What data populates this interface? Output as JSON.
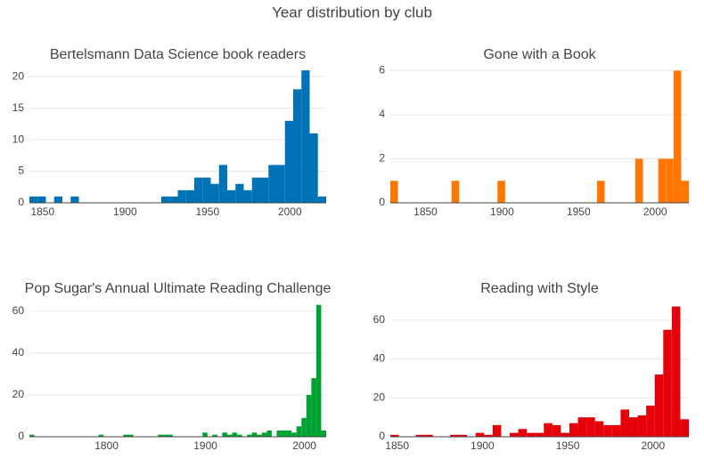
{
  "title": "Year distribution by club",
  "chart_data": [
    {
      "type": "histogram",
      "title": "Bertelsmann Data Science book readers",
      "color": "#0072b8",
      "bins": [
        1842,
        1847,
        1852,
        1857,
        1862,
        1867,
        1872,
        1877,
        1882,
        1887,
        1892,
        1897,
        1902,
        1907,
        1912,
        1917,
        1922,
        1927,
        1932,
        1937,
        1942,
        1947,
        1952,
        1957,
        1962,
        1967,
        1972,
        1977,
        1982,
        1987,
        1992,
        1997,
        2002,
        2007,
        2012,
        2017,
        2022
      ],
      "values": [
        1,
        1,
        0,
        1,
        0,
        1,
        0,
        0,
        0,
        0,
        0,
        0,
        0,
        0,
        0,
        0,
        1,
        1,
        2,
        2,
        4,
        4,
        3,
        6,
        2,
        3,
        2,
        4,
        4,
        6,
        6,
        13,
        18,
        21,
        11,
        1
      ],
      "xlim": [
        1842,
        2022
      ],
      "xticks": [
        1850,
        1900,
        1950,
        2000
      ],
      "ylim": [
        0,
        22
      ],
      "yticks": [
        0,
        5,
        10,
        15,
        20
      ],
      "grid": true
    },
    {
      "type": "histogram",
      "title": "Gone with a Book",
      "color": "#ff7700",
      "bins": [
        1827,
        1832,
        1837,
        1842,
        1847,
        1852,
        1857,
        1862,
        1867,
        1872,
        1877,
        1882,
        1887,
        1892,
        1897,
        1902,
        1907,
        1912,
        1917,
        1922,
        1927,
        1932,
        1937,
        1942,
        1947,
        1952,
        1957,
        1962,
        1967,
        1972,
        1977,
        1982,
        1987,
        1992,
        1997,
        2002,
        2007,
        2012,
        2017,
        2022
      ],
      "values": [
        1,
        0,
        0,
        0,
        0,
        0,
        0,
        0,
        1,
        0,
        0,
        0,
        0,
        0,
        1,
        0,
        0,
        0,
        0,
        0,
        0,
        0,
        0,
        0,
        0,
        0,
        0,
        1,
        0,
        0,
        0,
        0,
        2,
        0,
        0,
        2,
        2,
        6,
        1
      ],
      "xlim": [
        1827,
        2022
      ],
      "xticks": [
        1850,
        1900,
        1950,
        2000
      ],
      "ylim": [
        0,
        6.3
      ],
      "yticks": [
        0,
        2,
        4,
        6
      ],
      "grid": true
    },
    {
      "type": "histogram",
      "title": "Pop Sugar's Annual Ultimate Reading Challenge",
      "color": "#00a331",
      "bins": [
        1722,
        1727,
        1732,
        1737,
        1742,
        1747,
        1752,
        1757,
        1762,
        1767,
        1772,
        1777,
        1782,
        1787,
        1792,
        1797,
        1802,
        1807,
        1812,
        1817,
        1822,
        1827,
        1832,
        1837,
        1842,
        1847,
        1852,
        1857,
        1862,
        1867,
        1872,
        1877,
        1882,
        1887,
        1892,
        1897,
        1902,
        1907,
        1912,
        1917,
        1922,
        1927,
        1932,
        1937,
        1942,
        1947,
        1952,
        1957,
        1962,
        1967,
        1972,
        1977,
        1982,
        1987,
        1992,
        1997,
        2002,
        2007,
        2012,
        2017,
        2022
      ],
      "values": [
        1,
        0,
        0,
        0,
        0,
        0,
        0,
        0,
        0,
        0,
        0,
        0,
        0,
        0,
        1,
        0,
        0,
        0,
        0,
        1,
        1,
        0,
        0,
        0,
        0,
        0,
        1,
        1,
        1,
        0,
        0,
        0,
        0,
        0,
        0,
        2,
        0,
        1,
        0,
        2,
        1,
        2,
        1,
        0,
        1,
        2,
        1,
        2,
        3,
        0,
        3,
        3,
        3,
        2,
        5,
        9,
        20,
        28,
        63,
        3
      ],
      "xlim": [
        1722,
        2022
      ],
      "xticks": [
        1800,
        1900,
        2000
      ],
      "ylim": [
        0,
        65
      ],
      "yticks": [
        0,
        20,
        40,
        60
      ],
      "grid": true
    },
    {
      "type": "histogram",
      "title": "Reading with Style",
      "color": "#e5000a",
      "bins": [
        1846,
        1851,
        1856,
        1861,
        1866,
        1871,
        1876,
        1881,
        1886,
        1891,
        1896,
        1901,
        1906,
        1911,
        1916,
        1921,
        1926,
        1931,
        1936,
        1941,
        1946,
        1951,
        1956,
        1961,
        1966,
        1971,
        1976,
        1981,
        1986,
        1991,
        1996,
        2001,
        2006,
        2011,
        2016,
        2021
      ],
      "values": [
        1,
        0,
        0,
        1,
        1,
        0,
        0,
        1,
        1,
        0,
        2,
        1,
        6,
        0,
        2,
        4,
        2,
        2,
        7,
        6,
        2,
        7,
        10,
        10,
        8,
        6,
        6,
        14,
        10,
        11,
        16,
        32,
        55,
        67,
        9
      ],
      "xlim": [
        1846,
        2021
      ],
      "xticks": [
        1850,
        1900,
        1950,
        2000
      ],
      "ylim": [
        0,
        70
      ],
      "yticks": [
        0,
        20,
        40,
        60
      ],
      "grid": true
    }
  ]
}
